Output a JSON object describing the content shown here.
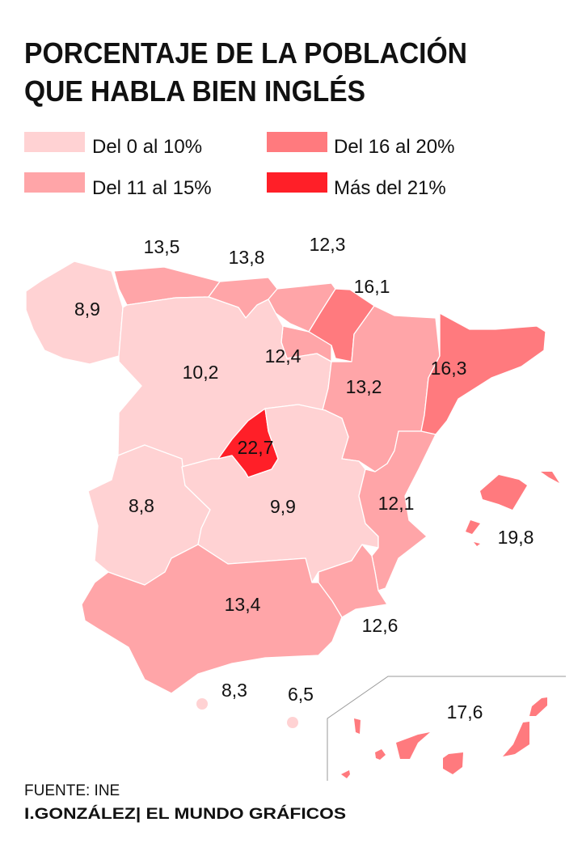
{
  "title": {
    "line1": "PORCENTAJE DE LA POBLACIÓN",
    "line2": "QUE HABLA BIEN INGLÉS"
  },
  "legend": {
    "items": [
      {
        "label": "Del 0 al 10%",
        "color": "#ffd2d3"
      },
      {
        "label": "Del 11 al 15%",
        "color": "#ffa5a8"
      },
      {
        "label": "Del 16 al 20%",
        "color": "#ff7a7e"
      },
      {
        "label": "Más del 21%",
        "color": "#ff1f28"
      }
    ]
  },
  "map": {
    "regions": [
      {
        "value": "8,9",
        "category": 0
      },
      {
        "value": "13,5",
        "category": 1
      },
      {
        "value": "13,8",
        "category": 1
      },
      {
        "value": "12,3",
        "category": 1
      },
      {
        "value": "16,1",
        "category": 2
      },
      {
        "value": "12,4",
        "category": 1
      },
      {
        "value": "10,2",
        "category": 0
      },
      {
        "value": "13,2",
        "category": 1
      },
      {
        "value": "16,3",
        "category": 2
      },
      {
        "value": "22,7",
        "category": 3
      },
      {
        "value": "8,8",
        "category": 0
      },
      {
        "value": "9,9",
        "category": 0
      },
      {
        "value": "12,1",
        "category": 1
      },
      {
        "value": "12,6",
        "category": 1
      },
      {
        "value": "13,4",
        "category": 1
      },
      {
        "value": "19,8",
        "category": 2
      },
      {
        "value": "8,3",
        "category": 0
      },
      {
        "value": "6,5",
        "category": 0
      },
      {
        "value": "17,6",
        "category": 2
      }
    ]
  },
  "footer": {
    "source": "FUENTE: INE",
    "credit": "I.GONZÁLEZ| EL MUNDO GRÁFICOS"
  }
}
